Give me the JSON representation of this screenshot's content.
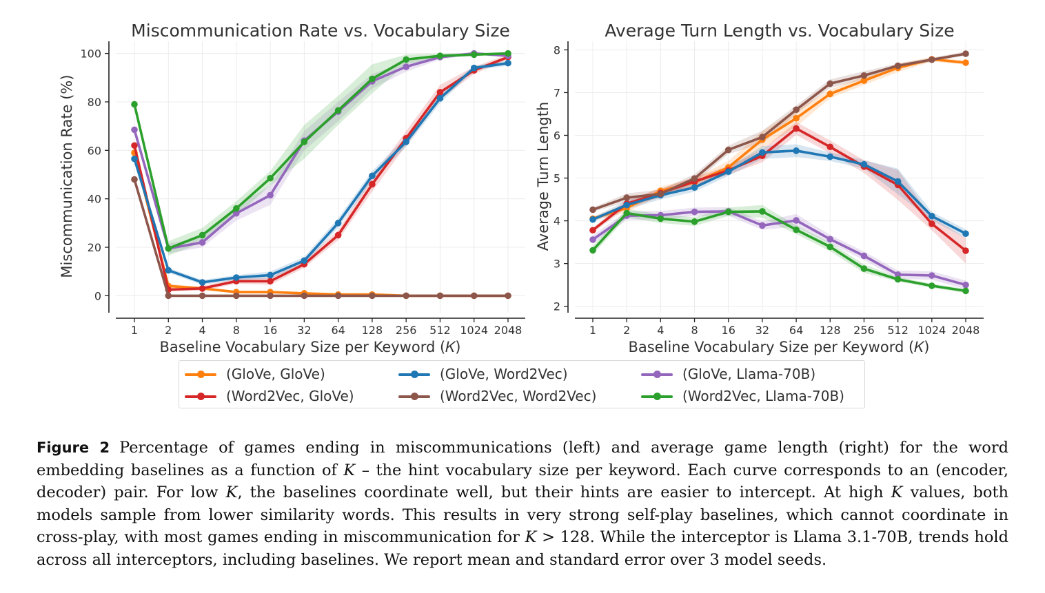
{
  "chart_data": [
    {
      "type": "line",
      "title": "Miscommunication Rate vs. Vocabulary Size",
      "xlabel": "Baseline Vocabulary Size per Keyword (𝐾)",
      "ylabel": "Miscommunication Rate (%)",
      "x_scale": "log2",
      "categories": [
        "1",
        "2",
        "4",
        "8",
        "16",
        "32",
        "64",
        "128",
        "256",
        "512",
        "1024",
        "2048"
      ],
      "ylim": [
        -7,
        105
      ],
      "yticks": [
        0,
        20,
        40,
        60,
        80,
        100
      ],
      "grid": true,
      "series": [
        {
          "name": "(GloVe, GloVe)",
          "color": "#ff7f0e",
          "values": [
            59,
            4,
            3,
            1.5,
            1.5,
            1,
            0.5,
            0.5,
            0,
            0,
            0,
            0
          ],
          "err": [
            0,
            1,
            0.5,
            0.5,
            0.5,
            0.3,
            0.3,
            0.3,
            0,
            0,
            0,
            0
          ]
        },
        {
          "name": "(Word2Vec, GloVe)",
          "color": "#d62728",
          "values": [
            62,
            2.5,
            3,
            6,
            6,
            13,
            25,
            46,
            65,
            84,
            93,
            98.5
          ],
          "err": [
            0,
            0.5,
            1,
            1,
            1.5,
            1.5,
            2,
            3,
            3,
            3,
            1.5,
            1
          ]
        },
        {
          "name": "(GloVe, Word2Vec)",
          "color": "#1f77b4",
          "values": [
            56.5,
            10.5,
            5.5,
            7.5,
            8.5,
            14.5,
            30,
            49.5,
            63.5,
            81.5,
            94,
            96
          ],
          "err": [
            0,
            1,
            1,
            1,
            1.5,
            1.5,
            2,
            2,
            2,
            2,
            1,
            1
          ]
        },
        {
          "name": "(Word2Vec, Word2Vec)",
          "color": "#8c564b",
          "values": [
            48,
            0,
            0,
            0,
            0,
            0,
            0,
            0,
            0,
            0,
            0,
            0
          ],
          "err": [
            0,
            0,
            0,
            0,
            0,
            0,
            0,
            0,
            0,
            0,
            0,
            0
          ]
        },
        {
          "name": "(GloVe, Llama-70B)",
          "color": "#9467bd",
          "values": [
            68.5,
            19.5,
            22,
            34,
            41.5,
            64,
            76,
            88.5,
            94.5,
            98.5,
            100,
            99
          ],
          "err": [
            0,
            2,
            2,
            3,
            4,
            4,
            4,
            3,
            2,
            1,
            0.5,
            0.5
          ]
        },
        {
          "name": "(Word2Vec, Llama-70B)",
          "color": "#2ca02c",
          "values": [
            79,
            19.5,
            25,
            36,
            48.5,
            63.5,
            76.5,
            89.5,
            97.5,
            99,
            99.5,
            100
          ],
          "err": [
            0,
            3,
            3,
            3,
            3,
            7,
            6,
            6,
            2,
            1,
            0.5,
            0.3
          ]
        }
      ]
    },
    {
      "type": "line",
      "title": "Average Turn Length vs. Vocabulary Size",
      "xlabel": "Baseline Vocabulary Size per Keyword (𝐾)",
      "ylabel": "Average Turn Length",
      "x_scale": "log2",
      "categories": [
        "1",
        "2",
        "4",
        "8",
        "16",
        "32",
        "64",
        "128",
        "256",
        "512",
        "1024",
        "2048"
      ],
      "ylim": [
        1.85,
        8.2
      ],
      "yticks": [
        2,
        3,
        4,
        5,
        6,
        7,
        8
      ],
      "grid": true,
      "series": [
        {
          "name": "(GloVe, GloVe)",
          "color": "#ff7f0e",
          "values": [
            4.05,
            4.3,
            4.7,
            4.9,
            5.25,
            5.9,
            6.4,
            6.97,
            7.28,
            7.58,
            7.78,
            7.7
          ],
          "err": [
            0.05,
            0.1,
            0.1,
            0.1,
            0.15,
            0.2,
            0.2,
            0.1,
            0.1,
            0.1,
            0.05,
            0.05
          ]
        },
        {
          "name": "(Word2Vec, GloVe)",
          "color": "#d62728",
          "values": [
            3.78,
            4.4,
            4.65,
            4.92,
            5.18,
            5.52,
            6.16,
            5.73,
            5.27,
            4.84,
            3.93,
            3.3
          ],
          "err": [
            0.05,
            0.1,
            0.1,
            0.1,
            0.1,
            0.15,
            0.15,
            0.15,
            0.15,
            0.35,
            0.15,
            0.3
          ]
        },
        {
          "name": "(GloVe, Word2Vec)",
          "color": "#1f77b4",
          "values": [
            4.03,
            4.37,
            4.6,
            4.78,
            5.15,
            5.6,
            5.64,
            5.5,
            5.32,
            4.92,
            4.11,
            3.7
          ],
          "err": [
            0.05,
            0.1,
            0.1,
            0.1,
            0.1,
            0.15,
            0.15,
            0.1,
            0.1,
            0.3,
            0.1,
            0.1
          ]
        },
        {
          "name": "(Word2Vec, Word2Vec)",
          "color": "#8c564b",
          "values": [
            4.26,
            4.54,
            4.63,
            4.99,
            5.66,
            5.96,
            6.6,
            7.21,
            7.4,
            7.63,
            7.77,
            7.91
          ],
          "err": [
            0.05,
            0.1,
            0.1,
            0.1,
            0.1,
            0.15,
            0.1,
            0.1,
            0.1,
            0.05,
            0.05,
            0.05
          ]
        },
        {
          "name": "(GloVe, Llama-70B)",
          "color": "#9467bd",
          "values": [
            3.56,
            4.12,
            4.13,
            4.21,
            4.22,
            3.89,
            4.01,
            3.57,
            3.18,
            2.74,
            2.72,
            2.5
          ],
          "err": [
            0.1,
            0.1,
            0.1,
            0.1,
            0.1,
            0.1,
            0.15,
            0.1,
            0.1,
            0.1,
            0.1,
            0.1
          ]
        },
        {
          "name": "(Word2Vec, Llama-70B)",
          "color": "#2ca02c",
          "values": [
            3.31,
            4.18,
            4.05,
            3.98,
            4.21,
            4.22,
            3.79,
            3.39,
            2.88,
            2.63,
            2.48,
            2.36
          ],
          "err": [
            0.1,
            0.1,
            0.1,
            0.1,
            0.1,
            0.15,
            0.1,
            0.1,
            0.1,
            0.05,
            0.05,
            0.05
          ]
        }
      ]
    }
  ],
  "legend": {
    "placement": "bottom-center",
    "items": [
      {
        "label": "(GloVe, GloVe)",
        "color": "#ff7f0e"
      },
      {
        "label": "(GloVe, Word2Vec)",
        "color": "#1f77b4"
      },
      {
        "label": "(GloVe, Llama-70B)",
        "color": "#9467bd"
      },
      {
        "label": "(Word2Vec, GloVe)",
        "color": "#d62728"
      },
      {
        "label": "(Word2Vec, Word2Vec)",
        "color": "#8c564b"
      },
      {
        "label": "(Word2Vec, Llama-70B)",
        "color": "#2ca02c"
      }
    ]
  },
  "caption": {
    "label": "Figure 2",
    "text": "Percentage of games ending in miscommunications (left) and average game length (right) for the word embedding baselines as a function of 𝐾 – the hint vocabulary size per keyword. Each curve corresponds to an (encoder, decoder) pair. For low 𝐾, the baselines coordinate well, but their hints are easier to intercept. At high 𝐾 values, both models sample from lower similarity words. This results in very strong self-play baselines, which cannot coordinate in cross-play, with most games ending in miscommunication for 𝐾 > 128. While the interceptor is Llama 3.1-70B, trends hold across all interceptors, including baselines. We report mean and standard error over 3 model seeds."
  }
}
